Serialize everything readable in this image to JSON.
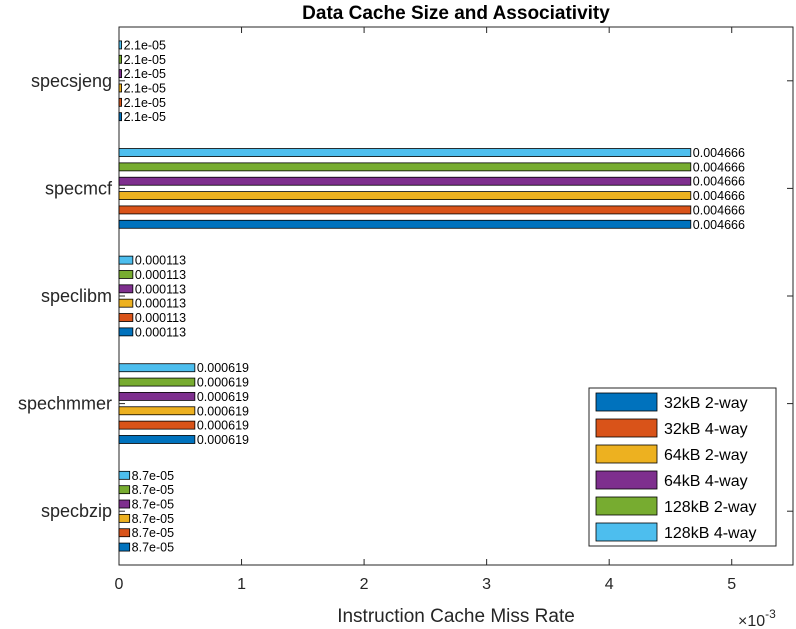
{
  "chart_data": {
    "type": "bar",
    "orientation": "horizontal",
    "title": "Data Cache Size and Associativity",
    "xlabel": "Instruction Cache Miss Rate",
    "ylabel": "",
    "x_exponent_label": "×10",
    "x_exponent_power": "-3",
    "xlim": [
      0,
      0.0055
    ],
    "xticks": [
      0,
      0.001,
      0.002,
      0.003,
      0.004,
      0.005
    ],
    "xtick_labels": [
      "0",
      "1",
      "2",
      "3",
      "4",
      "5"
    ],
    "categories": [
      "specbzip",
      "spechmmer",
      "speclibm",
      "specmcf",
      "specsjeng"
    ],
    "series": [
      {
        "name": "32kB 2-way",
        "color": "#0072BD",
        "values": [
          8.7e-05,
          0.000619,
          0.000113,
          0.004666,
          2.1e-05
        ]
      },
      {
        "name": "32kB 4-way",
        "color": "#D95319",
        "values": [
          8.7e-05,
          0.000619,
          0.000113,
          0.004666,
          2.1e-05
        ]
      },
      {
        "name": "64kB 2-way",
        "color": "#EDB120",
        "values": [
          8.7e-05,
          0.000619,
          0.000113,
          0.004666,
          2.1e-05
        ]
      },
      {
        "name": "64kB 4-way",
        "color": "#7E2F8E",
        "values": [
          8.7e-05,
          0.000619,
          0.000113,
          0.004666,
          2.1e-05
        ]
      },
      {
        "name": "128kB 2-way",
        "color": "#77AC30",
        "values": [
          8.7e-05,
          0.000619,
          0.000113,
          0.004666,
          2.1e-05
        ]
      },
      {
        "name": "128kB 4-way",
        "color": "#4DBEEE",
        "values": [
          8.7e-05,
          0.000619,
          0.000113,
          0.004666,
          2.1e-05
        ]
      }
    ],
    "data_labels": [
      [
        "8.7e-05",
        "0.000619",
        "0.000113",
        "0.004666",
        "2.1e-05"
      ],
      [
        "8.7e-05",
        "0.000619",
        "0.000113",
        "0.004666",
        "2.1e-05"
      ],
      [
        "8.7e-05",
        "0.000619",
        "0.000113",
        "0.004666",
        "2.1e-05"
      ],
      [
        "8.7e-05",
        "0.000619",
        "0.000113",
        "0.004666",
        "2.1e-05"
      ],
      [
        "8.7e-05",
        "0.000619",
        "0.000113",
        "0.004666",
        "2.1e-05"
      ],
      [
        "8.7e-05",
        "0.000619",
        "0.000113",
        "0.004666",
        "2.1e-05"
      ]
    ],
    "legend_position": "bottom-right",
    "grid": false
  }
}
